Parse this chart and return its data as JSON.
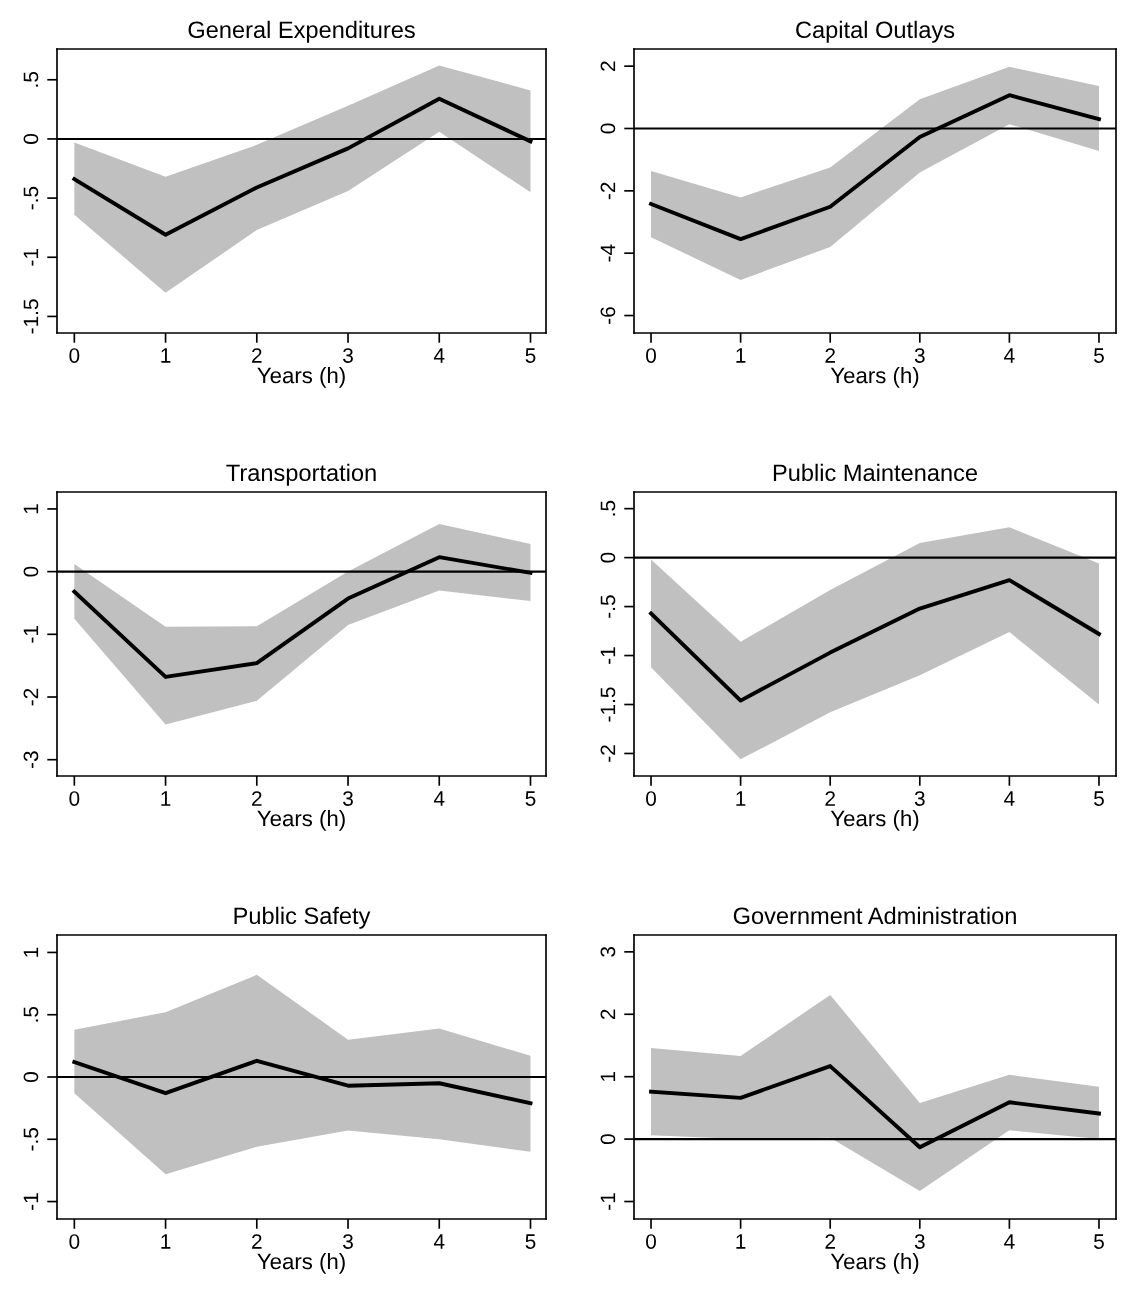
{
  "chart_data": [
    {
      "type": "line",
      "title": "General Expenditures",
      "xlabel": "Years (h)",
      "x": [
        0,
        1,
        2,
        3,
        4,
        5
      ],
      "xlim": [
        -0.19,
        5.17
      ],
      "xticks": [
        0,
        1,
        2,
        3,
        4,
        5
      ],
      "ylim": [
        -1.64,
        0.76
      ],
      "yticks": [
        {
          "value": -1.5,
          "label": "-1.5"
        },
        -1,
        {
          "value": -0.5,
          "label": "-.5"
        },
        0,
        {
          "value": 0.5,
          "label": ".5"
        }
      ],
      "grid": false,
      "line_style": "solid",
      "series": [
        {
          "color": "#000000",
          "values": [
            -0.34,
            -0.81,
            -0.41,
            -0.08,
            0.34,
            -0.02
          ],
          "lower": [
            -0.64,
            -1.3,
            -0.77,
            -0.44,
            0.06,
            -0.45
          ],
          "upper": [
            -0.03,
            -0.32,
            -0.05,
            0.28,
            0.62,
            0.41
          ]
        }
      ],
      "ref_lines": [
        {
          "axis": "y",
          "value": 0,
          "color": "#000000"
        }
      ]
    },
    {
      "type": "line",
      "title": "Capital Outlays",
      "xlabel": "Years (h)",
      "x": [
        0,
        1,
        2,
        3,
        4,
        5
      ],
      "xlim": [
        -0.19,
        5.19
      ],
      "xticks": [
        0,
        1,
        2,
        3,
        4,
        5
      ],
      "ylim": [
        -6.56,
        2.55
      ],
      "yticks": [
        -6,
        -4,
        -2,
        0,
        2
      ],
      "grid": false,
      "line_style": "solid",
      "series": [
        {
          "color": "#000000",
          "values": [
            -2.42,
            -3.55,
            -2.51,
            -0.27,
            1.07,
            0.3
          ],
          "lower": [
            -3.49,
            -4.86,
            -3.8,
            -1.41,
            0.14,
            -0.72
          ],
          "upper": [
            -1.36,
            -2.21,
            -1.25,
            0.94,
            1.98,
            1.36
          ]
        }
      ],
      "ref_lines": [
        {
          "axis": "y",
          "value": 0,
          "color": "#000000"
        }
      ]
    },
    {
      "type": "line",
      "title": "Transportation",
      "xlabel": "Years (h)",
      "x": [
        0,
        1,
        2,
        3,
        4,
        5
      ],
      "xlim": [
        -0.19,
        5.17
      ],
      "xticks": [
        0,
        1,
        2,
        3,
        4,
        5
      ],
      "ylim": [
        -3.26,
        1.27
      ],
      "yticks": [
        -3,
        -2,
        -1,
        0,
        1
      ],
      "grid": false,
      "line_style": "solid",
      "series": [
        {
          "color": "#000000",
          "values": [
            -0.32,
            -1.68,
            -1.46,
            -0.43,
            0.23,
            -0.02
          ],
          "lower": [
            -0.75,
            -2.44,
            -2.06,
            -0.85,
            -0.3,
            -0.47
          ],
          "upper": [
            0.12,
            -0.88,
            -0.87,
            0.0,
            0.76,
            0.44
          ]
        }
      ],
      "ref_lines": [
        {
          "axis": "y",
          "value": 0,
          "color": "#000000"
        }
      ]
    },
    {
      "type": "line",
      "title": "Public Maintenance",
      "xlabel": "Years (h)",
      "x": [
        0,
        1,
        2,
        3,
        4,
        5
      ],
      "xlim": [
        -0.19,
        5.19
      ],
      "xticks": [
        0,
        1,
        2,
        3,
        4,
        5
      ],
      "ylim": [
        -2.23,
        0.67
      ],
      "yticks": [
        -2,
        {
          "value": -1.5,
          "label": "-1.5"
        },
        -1,
        {
          "value": -0.5,
          "label": "-.5"
        },
        0,
        {
          "value": 0.5,
          "label": ".5"
        }
      ],
      "grid": false,
      "line_style": "solid",
      "series": [
        {
          "color": "#000000",
          "values": [
            -0.57,
            -1.46,
            -0.97,
            -0.52,
            -0.23,
            -0.78
          ],
          "lower": [
            -1.12,
            -2.06,
            -1.58,
            -1.2,
            -0.76,
            -1.5
          ],
          "upper": [
            -0.02,
            -0.86,
            -0.33,
            0.15,
            0.31,
            -0.06
          ]
        }
      ],
      "ref_lines": [
        {
          "axis": "y",
          "value": 0,
          "color": "#000000"
        }
      ]
    },
    {
      "type": "line",
      "title": "Public Safety",
      "xlabel": "Years (h)",
      "x": [
        0,
        1,
        2,
        3,
        4,
        5
      ],
      "xlim": [
        -0.19,
        5.17
      ],
      "xticks": [
        0,
        1,
        2,
        3,
        4,
        5
      ],
      "ylim": [
        -1.14,
        1.14
      ],
      "yticks": [
        -1,
        {
          "value": -0.5,
          "label": "-.5"
        },
        0,
        {
          "value": 0.5,
          "label": ".5"
        },
        1
      ],
      "grid": false,
      "line_style": "solid",
      "series": [
        {
          "color": "#000000",
          "values": [
            0.12,
            -0.13,
            0.13,
            -0.07,
            -0.05,
            -0.21
          ],
          "lower": [
            -0.13,
            -0.78,
            -0.56,
            -0.43,
            -0.5,
            -0.6
          ],
          "upper": [
            0.38,
            0.52,
            0.82,
            0.3,
            0.39,
            0.17
          ]
        }
      ],
      "ref_lines": [
        {
          "axis": "y",
          "value": 0,
          "color": "#000000"
        }
      ]
    },
    {
      "type": "line",
      "title": "Government Administration",
      "xlabel": "Years (h)",
      "x": [
        0,
        1,
        2,
        3,
        4,
        5
      ],
      "xlim": [
        -0.19,
        5.19
      ],
      "xticks": [
        0,
        1,
        2,
        3,
        4,
        5
      ],
      "ylim": [
        -1.28,
        3.27
      ],
      "yticks": [
        -1,
        0,
        1,
        2,
        3
      ],
      "grid": false,
      "line_style": "solid",
      "series": [
        {
          "color": "#000000",
          "values": [
            0.76,
            0.66,
            1.17,
            -0.13,
            0.59,
            0.41
          ],
          "lower": [
            0.06,
            0.0,
            0.02,
            -0.83,
            0.14,
            0.0
          ],
          "upper": [
            1.46,
            1.33,
            2.31,
            0.58,
            1.03,
            0.84
          ]
        }
      ],
      "ref_lines": [
        {
          "axis": "y",
          "value": 0,
          "color": "#000000"
        }
      ]
    }
  ]
}
